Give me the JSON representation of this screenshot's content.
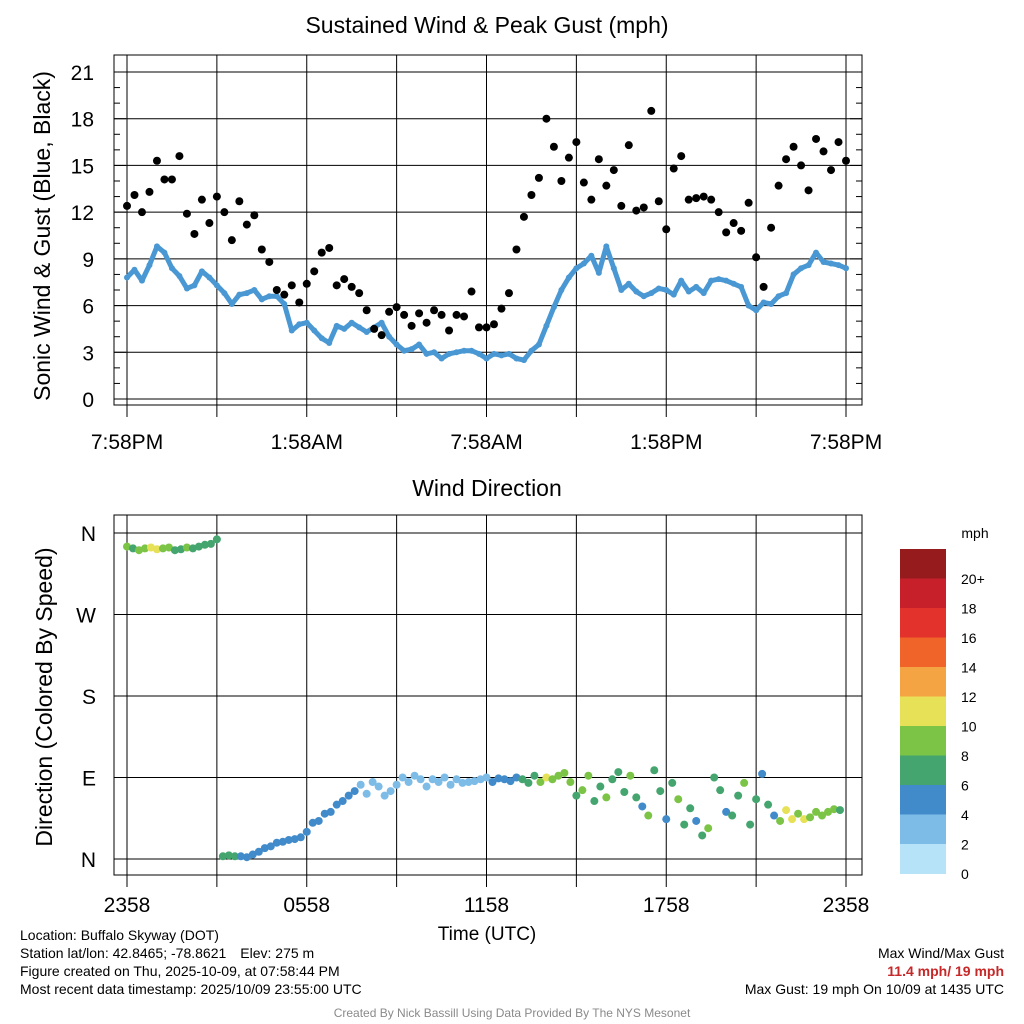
{
  "chart_data": [
    {
      "type": "scatter",
      "title": "Sustained Wind & Peak Gust (mph)",
      "ylabel": "Sonic Wind & Gust (Blue, Black)",
      "xlabel": "",
      "ylim": [
        0,
        21
      ],
      "yticks": [
        "0",
        "3",
        "6",
        "9",
        "12",
        "15",
        "18",
        "21"
      ],
      "xlim_hours": [
        0,
        24
      ],
      "xtick_labels": [
        "7:58PM",
        "1:58AM",
        "7:58AM",
        "1:58PM",
        "7:58PM"
      ],
      "grid": true,
      "series": [
        {
          "name": "Sonic Wind (Blue)",
          "color": "#4a98d3",
          "x": [
            0.0,
            0.25,
            0.5,
            0.75,
            1.0,
            1.25,
            1.5,
            1.75,
            2.0,
            2.25,
            2.5,
            2.75,
            3.0,
            3.25,
            3.5,
            3.75,
            4.0,
            4.25,
            4.5,
            4.75,
            5.0,
            5.25,
            5.5,
            5.75,
            6.0,
            6.25,
            6.5,
            6.75,
            7.0,
            7.25,
            7.5,
            7.75,
            8.0,
            8.25,
            8.5,
            8.75,
            9.0,
            9.25,
            9.5,
            9.75,
            10.0,
            10.25,
            10.5,
            10.75,
            11.0,
            11.25,
            11.5,
            11.75,
            12.0,
            12.25,
            12.5,
            12.75,
            13.0,
            13.25,
            13.5,
            13.75,
            14.0,
            14.25,
            14.5,
            14.75,
            15.0,
            15.25,
            15.5,
            15.75,
            16.0,
            16.25,
            16.5,
            16.75,
            17.0,
            17.25,
            17.5,
            17.75,
            18.0,
            18.25,
            18.5,
            18.75,
            19.0,
            19.25,
            19.5,
            19.75,
            20.0,
            20.25,
            20.5,
            20.75,
            21.0,
            21.25,
            21.5,
            21.75,
            22.0,
            22.25,
            22.5,
            22.75,
            23.0,
            23.25,
            23.5,
            23.75,
            24.0
          ],
          "values": [
            7.8,
            8.3,
            7.6,
            8.6,
            9.8,
            9.4,
            8.4,
            7.9,
            7.1,
            7.3,
            8.2,
            7.8,
            7.3,
            6.8,
            6.1,
            6.7,
            6.8,
            7.0,
            6.4,
            6.6,
            6.6,
            6.1,
            4.4,
            4.8,
            4.9,
            4.4,
            3.9,
            3.6,
            4.7,
            4.5,
            4.9,
            4.6,
            4.3,
            4.6,
            4.9,
            4.0,
            3.5,
            3.1,
            3.2,
            3.5,
            2.9,
            3.0,
            2.6,
            2.9,
            3.0,
            3.1,
            3.1,
            2.9,
            2.6,
            2.9,
            2.8,
            2.9,
            2.6,
            2.5,
            3.1,
            3.5,
            4.7,
            5.9,
            7.0,
            7.8,
            8.4,
            8.7,
            9.2,
            8.1,
            9.8,
            8.4,
            7.0,
            7.4,
            6.9,
            6.6,
            6.8,
            7.1,
            7.0,
            6.7,
            7.6,
            6.9,
            7.2,
            6.8,
            7.6,
            7.7,
            7.6,
            7.4,
            7.2,
            6.0,
            5.7,
            6.2,
            6.1,
            6.6,
            6.8,
            8.0,
            8.4,
            8.6,
            9.4,
            8.8,
            8.7,
            8.6,
            8.4
          ]
        },
        {
          "name": "Peak Gust (Black)",
          "color": "#000000",
          "x": [
            0.0,
            0.25,
            0.5,
            0.75,
            1.0,
            1.25,
            1.5,
            1.75,
            2.0,
            2.25,
            2.5,
            2.75,
            3.0,
            3.25,
            3.5,
            3.75,
            4.0,
            4.25,
            4.5,
            4.75,
            5.0,
            5.25,
            5.5,
            5.75,
            6.0,
            6.25,
            6.5,
            6.75,
            7.0,
            7.25,
            7.5,
            7.75,
            8.0,
            8.25,
            8.5,
            8.75,
            9.0,
            9.25,
            9.5,
            9.75,
            10.0,
            10.25,
            10.5,
            10.75,
            11.0,
            11.25,
            11.5,
            11.75,
            12.0,
            12.25,
            12.5,
            12.75,
            13.0,
            13.25,
            13.5,
            13.75,
            14.0,
            14.25,
            14.5,
            14.75,
            15.0,
            15.25,
            15.5,
            15.75,
            16.0,
            16.25,
            16.5,
            16.75,
            17.0,
            17.25,
            17.5,
            17.75,
            18.0,
            18.25,
            18.5,
            18.75,
            19.0,
            19.25,
            19.5,
            19.75,
            20.0,
            20.25,
            20.5,
            20.75,
            21.0,
            21.25,
            21.5,
            21.75,
            22.0,
            22.25,
            22.5,
            22.75,
            23.0,
            23.25,
            23.5,
            23.75,
            24.0
          ],
          "values": [
            12.4,
            13.1,
            12.0,
            13.3,
            15.3,
            14.1,
            14.1,
            15.6,
            11.9,
            10.6,
            12.8,
            11.3,
            13.0,
            12.0,
            10.2,
            12.7,
            11.2,
            11.8,
            9.6,
            8.8,
            7.0,
            6.7,
            7.3,
            6.2,
            7.4,
            8.2,
            9.4,
            9.7,
            7.3,
            7.7,
            7.2,
            6.8,
            5.7,
            4.5,
            4.1,
            5.6,
            5.9,
            5.4,
            4.7,
            5.5,
            4.9,
            5.7,
            5.4,
            4.4,
            5.4,
            5.3,
            6.9,
            4.6,
            4.6,
            4.8,
            5.8,
            6.8,
            9.6,
            11.7,
            13.1,
            14.2,
            18.0,
            16.2,
            14.0,
            15.5,
            16.5,
            13.9,
            12.8,
            15.4,
            13.7,
            14.7,
            12.4,
            16.3,
            12.1,
            12.3,
            18.5,
            12.7,
            10.9,
            14.8,
            15.6,
            12.8,
            12.9,
            13.0,
            12.8,
            12.0,
            10.7,
            11.3,
            10.8,
            12.6,
            9.1,
            7.2,
            11.0,
            13.7,
            15.4,
            16.2,
            15.0,
            13.4,
            16.7,
            15.9,
            14.7,
            16.5,
            15.3
          ]
        }
      ]
    },
    {
      "type": "scatter",
      "title": "Wind Direction",
      "xlabel": "Time (UTC)",
      "ylabel": "Direction (Colored By Speed)",
      "ylim_degrees": [
        0,
        360
      ],
      "yticks": [
        "N",
        "E",
        "S",
        "W",
        "N"
      ],
      "xlim_hours": [
        0,
        24
      ],
      "xtick_labels": [
        "2358",
        "0558",
        "1158",
        "1758",
        "2358"
      ],
      "grid": true,
      "series": [
        {
          "name": "Wind Direction",
          "x": [
            0.0,
            0.2,
            0.4,
            0.6,
            0.8,
            1.0,
            1.2,
            1.4,
            1.6,
            1.8,
            2.0,
            2.2,
            2.4,
            2.6,
            2.8,
            3.0,
            3.2,
            3.4,
            3.6,
            3.8,
            4.0,
            4.2,
            4.4,
            4.6,
            4.8,
            5.0,
            5.2,
            5.4,
            5.6,
            5.8,
            6.0,
            6.2,
            6.4,
            6.6,
            6.8,
            7.0,
            7.2,
            7.4,
            7.6,
            7.8,
            8.0,
            8.2,
            8.4,
            8.6,
            8.8,
            9.0,
            9.2,
            9.4,
            9.6,
            9.8,
            10.0,
            10.2,
            10.4,
            10.6,
            10.8,
            11.0,
            11.2,
            11.4,
            11.6,
            11.8,
            12.0,
            12.2,
            12.4,
            12.6,
            12.8,
            13.0,
            13.2,
            13.4,
            13.6,
            13.8,
            14.0,
            14.2,
            14.4,
            14.6,
            14.8,
            15.0,
            15.2,
            15.4,
            15.6,
            15.8,
            16.0,
            16.2,
            16.4,
            16.6,
            16.8,
            17.0,
            17.2,
            17.4,
            17.6,
            17.8,
            18.0,
            18.2,
            18.4,
            18.6,
            18.8,
            19.0,
            19.2,
            19.4,
            19.6,
            19.8,
            20.0,
            20.2,
            20.4,
            20.6,
            20.8,
            21.0,
            21.2,
            21.4,
            21.6,
            21.8,
            22.0,
            22.2,
            22.4,
            22.6,
            22.8,
            23.0,
            23.2,
            23.4,
            23.6,
            23.8
          ],
          "values": [
            345,
            343,
            341,
            343,
            344,
            342,
            343,
            344,
            341,
            342,
            344,
            343,
            345,
            347,
            348,
            353,
            3,
            4,
            3,
            3,
            2,
            5,
            8,
            12,
            14,
            18,
            19,
            21,
            22,
            24,
            30,
            40,
            42,
            50,
            52,
            60,
            64,
            70,
            75,
            82,
            72,
            85,
            80,
            70,
            75,
            82,
            90,
            85,
            92,
            88,
            80,
            88,
            85,
            90,
            82,
            88,
            84,
            85,
            86,
            88,
            90,
            85,
            89,
            88,
            86,
            90,
            88,
            84,
            92,
            85,
            90,
            88,
            92,
            95,
            85,
            70,
            76,
            92,
            64,
            80,
            68,
            88,
            96,
            74,
            92,
            68,
            58,
            48,
            98,
            75,
            44,
            84,
            66,
            38,
            56,
            42,
            26,
            34,
            90,
            76,
            52,
            48,
            70,
            84,
            38,
            66,
            94,
            60,
            48,
            42,
            54,
            44,
            50,
            44,
            46,
            52,
            48,
            52,
            55,
            54
          ],
          "speed_mph": [
            8,
            7,
            8,
            9,
            10,
            10,
            9,
            8,
            7,
            7,
            8,
            7,
            7,
            6,
            6,
            6,
            6,
            6,
            6,
            5,
            5,
            5,
            5,
            5,
            5,
            5,
            4,
            4,
            4,
            4,
            4,
            4,
            4,
            5,
            5,
            4,
            4,
            4,
            4,
            3,
            2,
            2,
            2,
            2,
            3,
            3,
            3,
            3,
            2,
            2,
            2,
            2,
            2,
            3,
            2,
            2,
            3,
            2,
            2,
            3,
            3,
            4,
            4,
            5,
            5,
            5,
            6,
            7,
            7,
            9,
            10,
            9,
            8,
            9,
            8,
            6,
            8,
            8,
            7,
            6,
            8,
            7,
            6,
            7,
            8,
            6,
            5,
            8,
            6,
            7,
            4,
            7,
            8,
            6,
            7,
            5,
            6,
            8,
            6,
            7,
            4,
            7,
            6,
            8,
            6,
            7,
            4,
            6,
            5,
            8,
            10,
            10,
            9,
            10,
            9,
            9,
            8,
            8,
            8,
            7
          ]
        }
      ],
      "colorbar": {
        "label": "mph",
        "labels": [
          "20+",
          "18",
          "16",
          "14",
          "12",
          "10",
          "8",
          "6",
          "4",
          "2",
          "0"
        ],
        "colors": [
          "#951b1c",
          "#c8202b",
          "#e2322b",
          "#f0642a",
          "#f5a443",
          "#e6e157",
          "#7cc446",
          "#44a56e",
          "#418bcb",
          "#7ebce8",
          "#b6e3f8"
        ]
      }
    }
  ],
  "footer": {
    "location": "Location: Buffalo Skyway (DOT)",
    "latlon": "Station lat/lon: 42.8465; -78.8621",
    "elev": "Elev: 275 m",
    "created": "Figure created on Thu, 2025-10-09, at 07:58:44 PM",
    "recent": "Most recent data timestamp: 2025/10/09 23:55:00 UTC",
    "max_title": "Max Wind/Max Gust",
    "max_values": "11.4 mph/ 19 mph",
    "max_gust_note": "Max Gust: 19 mph On 10/09 at 1435 UTC",
    "credit": "Created By Nick Bassill Using Data Provided By The NYS Mesonet"
  }
}
